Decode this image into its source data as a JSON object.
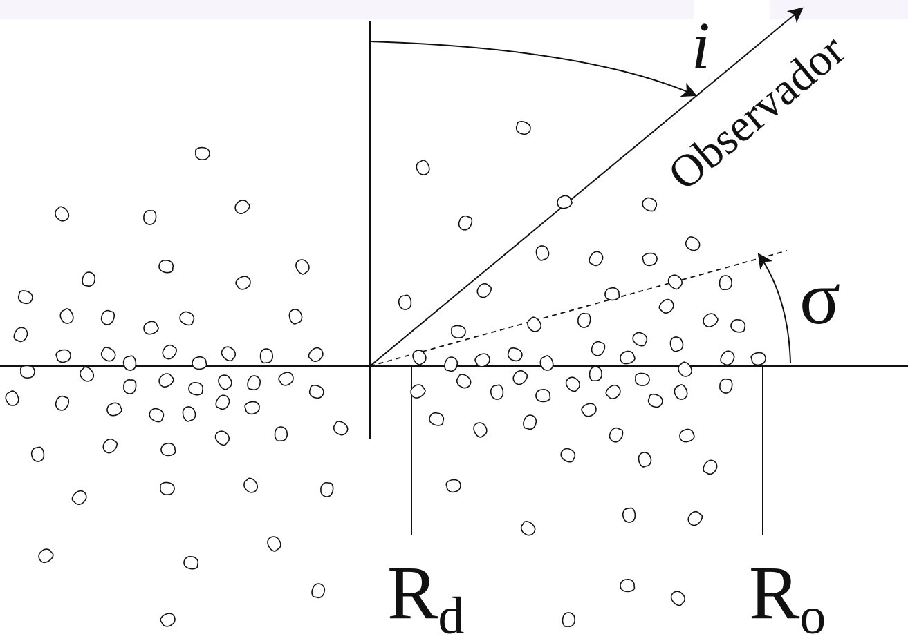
{
  "labels": {
    "inclination": "i",
    "observer": "Observador",
    "sigma": "σ",
    "r_d_main": "R",
    "r_d_sub": "d",
    "r_o_main": "R",
    "r_o_sub": "o"
  }
}
